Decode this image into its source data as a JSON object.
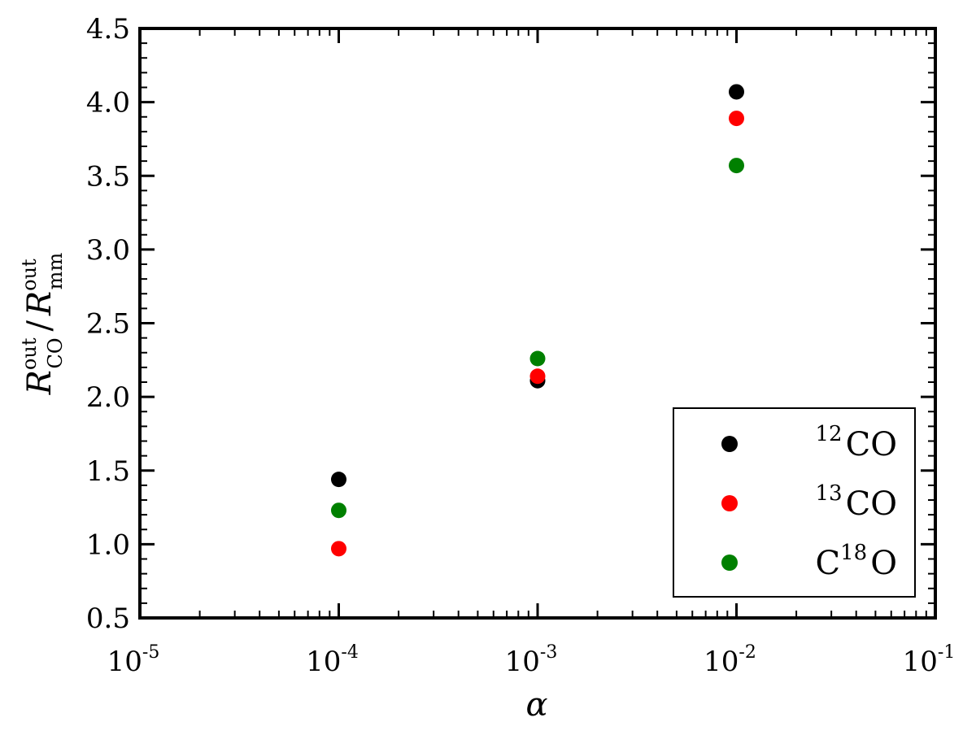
{
  "chart_data": {
    "type": "scatter",
    "title": "",
    "xlabel": "α",
    "ylabel": {
      "base": "R",
      "numerator_sup": "out",
      "numerator_sub": "CO",
      "separator": "/",
      "denominator_sup": "out",
      "denominator_sub": "mm"
    },
    "x_scale": "log",
    "xlim": [
      1e-05,
      0.1
    ],
    "ylim": [
      0.5,
      4.5
    ],
    "x_ticks": [
      {
        "value": 1e-05,
        "base": "10",
        "exp": "-5"
      },
      {
        "value": 0.0001,
        "base": "10",
        "exp": "-4"
      },
      {
        "value": 0.001,
        "base": "10",
        "exp": "-3"
      },
      {
        "value": 0.01,
        "base": "10",
        "exp": "-2"
      },
      {
        "value": 0.1,
        "base": "10",
        "exp": "-1"
      }
    ],
    "y_ticks": [
      "0.5",
      "1.0",
      "1.5",
      "2.0",
      "2.5",
      "3.0",
      "3.5",
      "4.0",
      "4.5"
    ],
    "grid": false,
    "legend_position": "lower-right",
    "series": [
      {
        "name": "12CO",
        "legend_pre": "",
        "legend_sup": "12",
        "legend_post": "CO",
        "color": "#000000",
        "points": [
          [
            0.0001,
            1.44
          ],
          [
            0.001,
            2.11
          ],
          [
            0.01,
            4.07
          ]
        ]
      },
      {
        "name": "13CO",
        "legend_pre": "",
        "legend_sup": "13",
        "legend_post": "CO",
        "color": "#ff0000",
        "points": [
          [
            0.0001,
            0.97
          ],
          [
            0.001,
            2.14
          ],
          [
            0.01,
            3.89
          ]
        ]
      },
      {
        "name": "C18O",
        "legend_pre": "C",
        "legend_sup": "18",
        "legend_post": "O",
        "color": "#008000",
        "points": [
          [
            0.0001,
            1.23
          ],
          [
            0.001,
            2.26
          ],
          [
            0.01,
            3.57
          ]
        ]
      }
    ]
  }
}
